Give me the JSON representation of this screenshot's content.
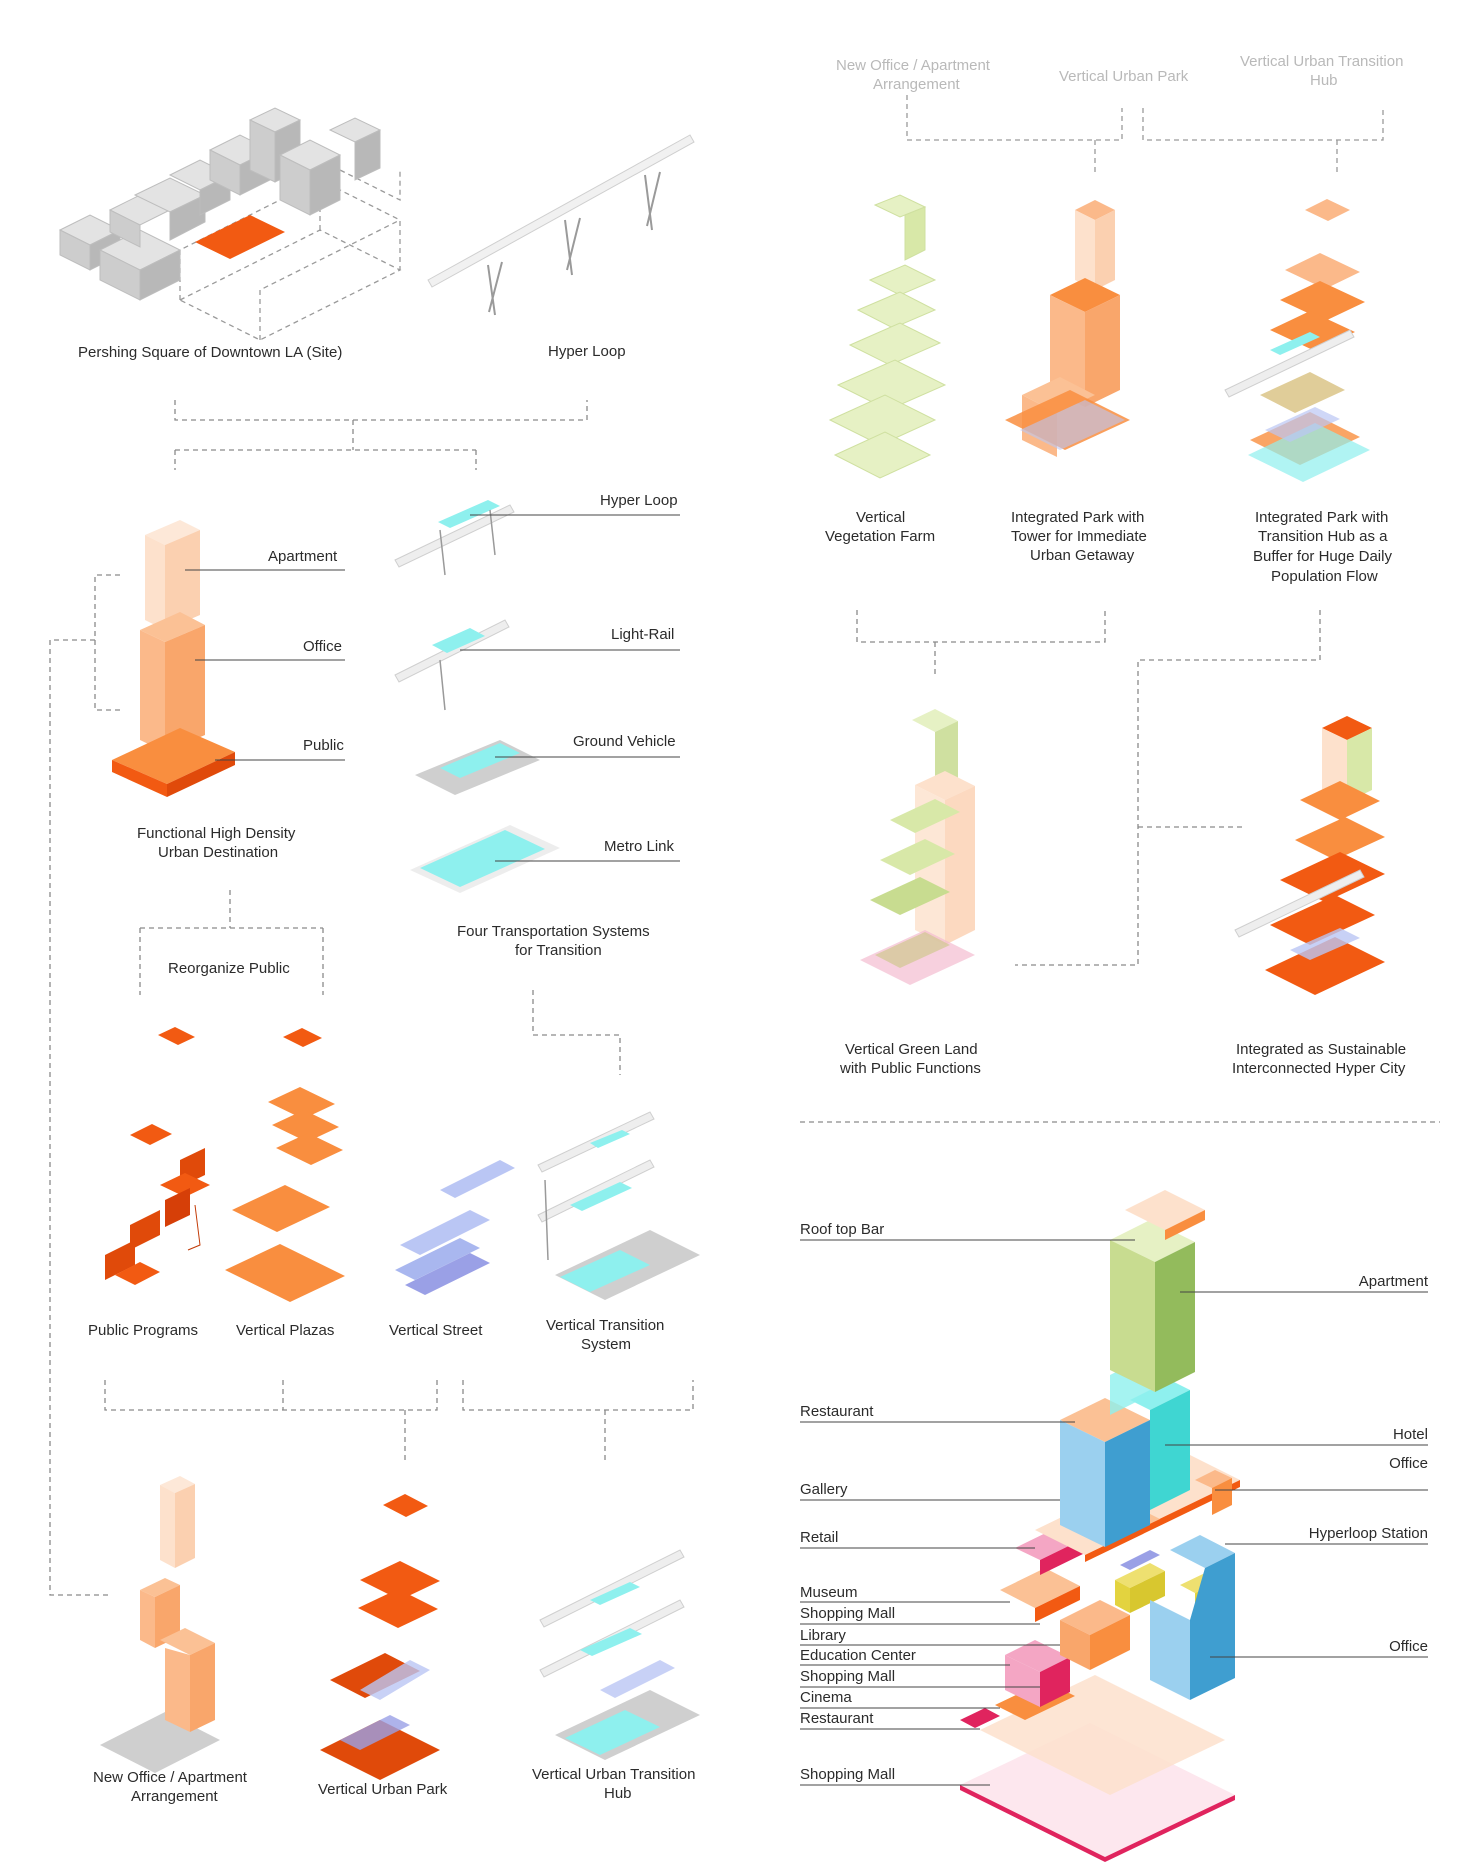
{
  "colors": {
    "orange_dark": "#f25a12",
    "orange": "#f98e3f",
    "orange_light": "#fbb98a",
    "peach": "#fde1cc",
    "cyan": "#8ef0ee",
    "green_light": "#e6f1c4",
    "green": "#93bb5c",
    "sky": "#9bd0ef",
    "blue": "#3f9ed0",
    "pink": "#f4a6c4",
    "magenta": "#e0245e",
    "yellow": "#e3d33f",
    "violet": "#9aa0e6",
    "grey": "#cfcfcf"
  },
  "left_panel": {
    "site_label": "Pershing Square of Downtown LA (Site)",
    "hyperloop_label": "Hyper Loop",
    "program_stack": {
      "apartment": "Apartment",
      "office": "Office",
      "public": "Public",
      "caption_line1": "Functional High Density",
      "caption_line2": "Urban Destination"
    },
    "transport": {
      "hyperloop": "Hyper Loop",
      "light_rail": "Light-Rail",
      "ground_vehicle": "Ground Vehicle",
      "metro_link": "Metro Link",
      "caption_line1": "Four Transportation Systems",
      "caption_line2": "for Transition"
    },
    "reorganize": "Reorganize Public",
    "components": {
      "public_programs": "Public Programs",
      "vertical_plazas": "Vertical Plazas",
      "vertical_street": "Vertical Street",
      "transition_line1": "Vertical Transition",
      "transition_line2": "System"
    },
    "results": {
      "office_line1": "New Office / Apartment",
      "office_line2": "Arrangement",
      "park": "Vertical Urban Park",
      "hub_line1": "Vertical Urban Transition",
      "hub_line2": "Hub"
    }
  },
  "right_panel": {
    "inputs": {
      "office_line1": "New Office / Apartment",
      "office_line2": "Arrangement",
      "park": "Vertical Urban Park",
      "hub_line1": "Vertical Urban Transition",
      "hub_line2": "Hub"
    },
    "options": {
      "farm_line1": "Vertical",
      "farm_line2": "Vegetation Farm",
      "park_line1": "Integrated Park with",
      "park_line2": "Tower for Immediate",
      "park_line3": "Urban Getaway",
      "hub_line1": "Integrated Park with",
      "hub_line2": "Transition Hub as a",
      "hub_line3": "Buffer for Huge Daily",
      "hub_line4": "Population Flow"
    },
    "combined": {
      "green_line1": "Vertical Green Land",
      "green_line2": "with Public Functions",
      "city_line1": "Integrated as Sustainable",
      "city_line2": "Interconnected Hyper City"
    }
  },
  "section_labels": {
    "left": [
      "Roof top Bar",
      "Restaurant",
      "Gallery",
      "Retail",
      "Museum",
      "Shopping Mall",
      "Library",
      "Education Center",
      "Shopping Mall",
      "Cinema",
      "Restaurant",
      "Shopping Mall"
    ],
    "right": [
      "Apartment",
      "Hotel",
      "Office",
      "Hyperloop Station",
      "Office"
    ]
  }
}
